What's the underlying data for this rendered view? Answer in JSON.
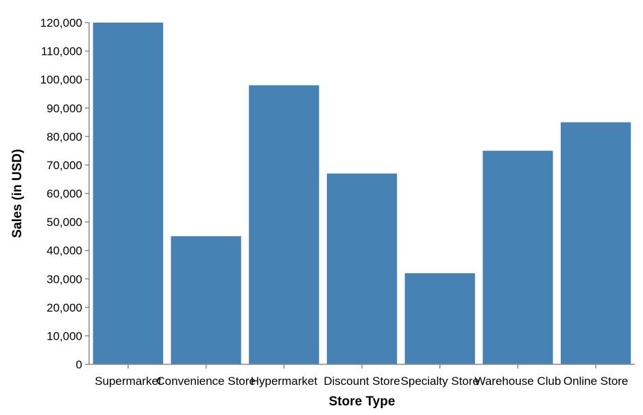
{
  "chart_data": {
    "type": "bar",
    "categories": [
      "Supermarket",
      "Convenience Store",
      "Hypermarket",
      "Discount Store",
      "Specialty Store",
      "Warehouse Club",
      "Online Store"
    ],
    "values": [
      120000,
      45000,
      98000,
      67000,
      32000,
      75000,
      85000
    ],
    "title": "",
    "xlabel": "Store Type",
    "ylabel": "Sales (in USD)",
    "ylim": [
      0,
      120000
    ],
    "yticks": [
      0,
      10000,
      20000,
      30000,
      40000,
      50000,
      60000,
      70000,
      80000,
      90000,
      100000,
      110000,
      120000
    ],
    "bar_color": "#4682b4",
    "grid": false,
    "legend": "none"
  }
}
